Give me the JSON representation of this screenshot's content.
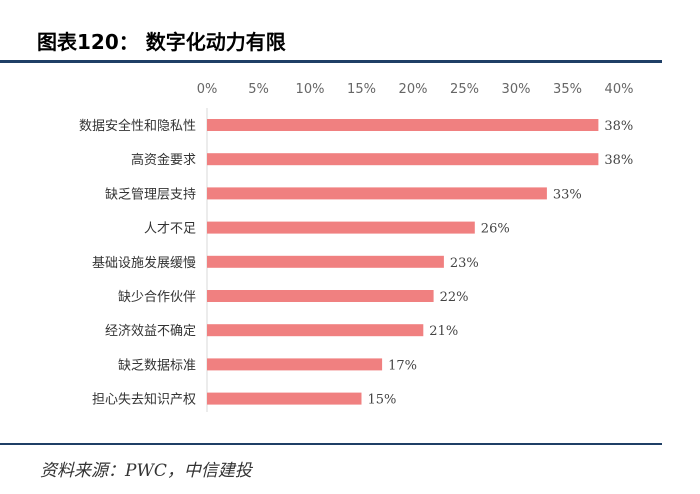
{
  "title": "图表120：  数字化动力有限",
  "source": "资料来源：PWC，中信建投",
  "chart_data": {
    "type": "bar",
    "orientation": "horizontal",
    "categories": [
      "数据安全性和隐私性",
      "高资金要求",
      "缺乏管理层支持",
      "人才不足",
      "基础设施发展缓慢",
      "缺少合作伙伴",
      "经济效益不确定",
      "缺乏数据标准",
      "担心失去知识产权"
    ],
    "values": [
      38,
      38,
      33,
      26,
      23,
      22,
      21,
      17,
      15
    ],
    "data_labels": [
      "38%",
      "38%",
      "33%",
      "26%",
      "23%",
      "22%",
      "21%",
      "17%",
      "15%"
    ],
    "x_ticks": [
      "0%",
      "5%",
      "10%",
      "15%",
      "20%",
      "25%",
      "30%",
      "35%",
      "40%"
    ],
    "xlim": [
      0,
      40
    ],
    "x_axis_position": "top",
    "grid": false,
    "bar_color": "#f08080"
  }
}
